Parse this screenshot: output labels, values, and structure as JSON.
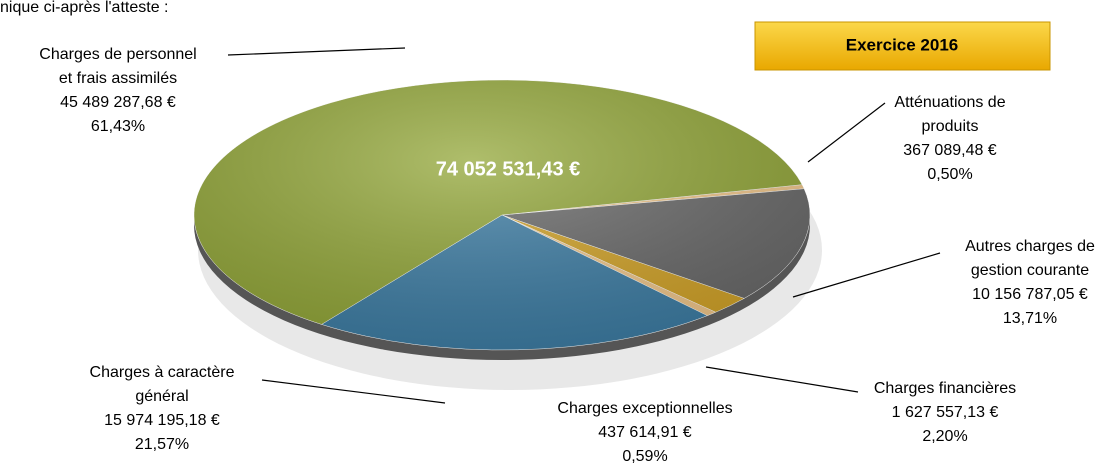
{
  "intro": "nique ci-après l'atteste :",
  "chart_data": {
    "type": "pie",
    "subtitle": "Exercice 2016",
    "total": 74052531.43,
    "total_label": "74 052 531,43 €",
    "categories": [
      "Atténuations de\nproduits",
      "Autres charges de\ngestion courante",
      "Charges financières",
      "Charges exceptionnelles",
      "Charges à caractère\ngénéral",
      "Charges de personnel\net frais assimilés"
    ],
    "amounts": [
      367089.48,
      10156787.05,
      1627557.13,
      437614.91,
      15974195.18,
      45489287.68
    ],
    "amount_labels": [
      "367 089,48 €",
      "10 156 787,05 €",
      "1 627 557,13 €",
      "437 614,91 €",
      "15 974 195,18 €",
      "45 489 287,68 €"
    ],
    "values": [
      0.5,
      13.71,
      2.2,
      0.59,
      21.57,
      61.43
    ],
    "value_labels": [
      "0,50%",
      "13,71%",
      "2,20%",
      "0,59%",
      "21,57%",
      "61,43%"
    ],
    "colors": [
      "#f3c98d",
      "#6b6b6b",
      "#d4a52a",
      "#f3c98d",
      "#3f7fa6",
      "#94a83a"
    ]
  }
}
